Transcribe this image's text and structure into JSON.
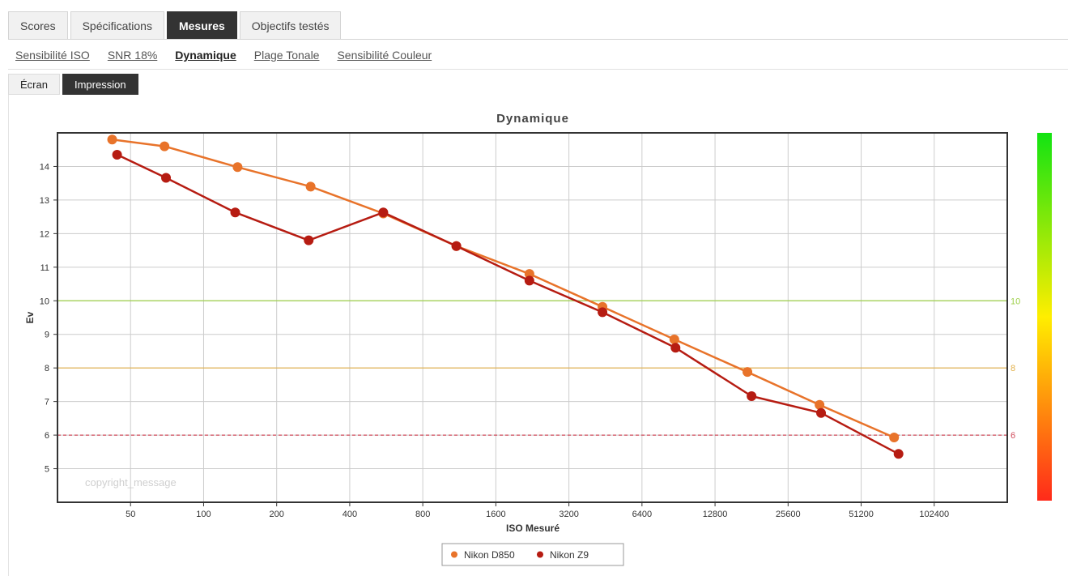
{
  "tabs": [
    {
      "label": "Scores",
      "active": false
    },
    {
      "label": "Spécifications",
      "active": false
    },
    {
      "label": "Mesures",
      "active": true
    },
    {
      "label": "Objectifs testés",
      "active": false
    }
  ],
  "subnav": [
    {
      "label": "Sensibilité ISO",
      "active": false
    },
    {
      "label": "SNR 18%",
      "active": false
    },
    {
      "label": "Dynamique",
      "active": true
    },
    {
      "label": "Plage Tonale",
      "active": false
    },
    {
      "label": "Sensibilité Couleur",
      "active": false
    }
  ],
  "view_toggle": [
    {
      "label": "Écran",
      "active": false
    },
    {
      "label": "Impression",
      "active": true
    }
  ],
  "watermark": "copyright_message",
  "chart_data": {
    "type": "line",
    "title": "Dynamique",
    "xlabel": "ISO Mesuré",
    "ylabel": "Ev",
    "x_scale": "log2",
    "xlim": [
      25,
      204800
    ],
    "ylim": [
      4,
      15
    ],
    "x_ticks": [
      50,
      100,
      200,
      400,
      800,
      1600,
      3200,
      6400,
      12800,
      25600,
      51200,
      102400
    ],
    "y_ticks": [
      5,
      6,
      7,
      8,
      9,
      10,
      11,
      12,
      13,
      14
    ],
    "grid": true,
    "legend_position": "bottom-center",
    "reference_lines": [
      {
        "value": 10,
        "label": "10",
        "color": "#9ed04a",
        "style": "solid"
      },
      {
        "value": 8,
        "label": "8",
        "color": "#e2b04a",
        "style": "solid"
      },
      {
        "value": 6,
        "label": "6",
        "color": "#d04a5a",
        "style": "dashed"
      }
    ],
    "color_scale": {
      "from": "#ff2a1a",
      "via": "#ffee00",
      "to": "#12e312"
    },
    "series": [
      {
        "name": "Nikon D850",
        "color": "#e8732a",
        "points": [
          [
            42,
            14.8
          ],
          [
            69,
            14.6
          ],
          [
            138,
            13.98
          ],
          [
            276,
            13.4
          ],
          [
            550,
            12.6
          ],
          [
            1100,
            11.63
          ],
          [
            2200,
            10.8
          ],
          [
            4400,
            9.82
          ],
          [
            8700,
            8.85
          ],
          [
            17400,
            7.88
          ],
          [
            34500,
            6.9
          ],
          [
            70000,
            5.93
          ]
        ]
      },
      {
        "name": "Nikon Z9",
        "color": "#b61c12",
        "points": [
          [
            44,
            14.35
          ],
          [
            70,
            13.66
          ],
          [
            135,
            12.63
          ],
          [
            271,
            11.8
          ],
          [
            550,
            12.63
          ],
          [
            1100,
            11.63
          ],
          [
            2200,
            10.6
          ],
          [
            4400,
            9.66
          ],
          [
            8800,
            8.6
          ],
          [
            18100,
            7.16
          ],
          [
            35000,
            6.66
          ],
          [
            73000,
            5.44
          ]
        ]
      }
    ]
  }
}
